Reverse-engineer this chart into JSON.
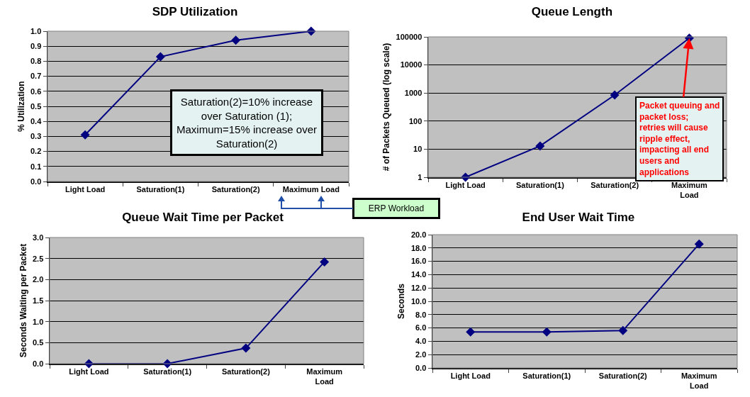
{
  "chart_data": [
    {
      "type": "line",
      "title": "SDP Utilization",
      "ylabel": "% Utilization",
      "categories": [
        "Light Load",
        "Saturation(1)",
        "Saturation(2)",
        "Maximum Load"
      ],
      "color": "#000080",
      "marker": "diamond",
      "grid": "y",
      "values": [
        0.31,
        0.83,
        0.94,
        1.0
      ],
      "ylim": [
        0,
        1
      ],
      "yticks": [
        {
          "value": 0,
          "label": "0.0"
        },
        0.1,
        0.2,
        0.3,
        0.4,
        0.5,
        0.6,
        0.7,
        0.8,
        0.9,
        {
          "value": 1,
          "label": "1.0"
        }
      ],
      "annotations": [
        "Saturation(2)=10% increase over Saturation (1); Maximum=15% increase over Saturation(2)",
        "ERP Workload"
      ]
    },
    {
      "type": "line",
      "title": "Queue Length",
      "ylabel": "# of Packets Queued (log scale)",
      "categories": [
        "Light Load",
        "Saturation(1)",
        "Saturation(2)",
        "Maximum Load"
      ],
      "color": "#000080",
      "marker": "diamond",
      "grid": "y",
      "log": "y",
      "values": [
        1,
        13,
        850,
        90000
      ],
      "ylim": [
        1,
        100000
      ],
      "yticks": [
        1,
        10,
        100,
        1000,
        10000,
        100000
      ],
      "annotations": [
        {
          "text": "Packet queuing and packet loss; retries will cause ripple effect, impacting all end users and applications",
          "x": "Maximum Load",
          "y": 90000
        }
      ]
    },
    {
      "type": "line",
      "title": "Queue Wait Time per Packet",
      "ylabel": "Seconds Waiting per Packet",
      "categories": [
        "Light Load",
        "Saturation(1)",
        "Saturation(2)",
        "Maximum Load"
      ],
      "color": "#000080",
      "marker": "diamond",
      "grid": "y",
      "values": [
        0,
        0,
        0.37,
        2.42
      ],
      "ylim": [
        0,
        3
      ],
      "yticks": [
        {
          "value": 0,
          "label": "0.0"
        },
        0.5,
        {
          "value": 1,
          "label": "1.0"
        },
        1.5,
        {
          "value": 2,
          "label": "2.0"
        },
        2.5,
        {
          "value": 3,
          "label": "3.0"
        }
      ]
    },
    {
      "type": "line",
      "title": "End User Wait Time",
      "ylabel": "Seconds",
      "categories": [
        "Light Load",
        "Saturation(1)",
        "Saturation(2)",
        "Maximum Load"
      ],
      "color": "#000080",
      "marker": "diamond",
      "grid": "y",
      "values": [
        5.4,
        5.4,
        5.6,
        18.6
      ],
      "ylim": [
        0,
        20
      ],
      "yticks": [
        {
          "value": 0,
          "label": "0.0"
        },
        {
          "value": 2,
          "label": "2.0"
        },
        {
          "value": 4,
          "label": "4.0"
        },
        {
          "value": 6,
          "label": "6.0"
        },
        {
          "value": 8,
          "label": "8.0"
        },
        {
          "value": 10,
          "label": "10.0"
        },
        {
          "value": 12,
          "label": "12.0"
        },
        {
          "value": 14,
          "label": "14.0"
        },
        {
          "value": 16,
          "label": "16.0"
        },
        {
          "value": 18,
          "label": "18.0"
        },
        {
          "value": 20,
          "label": "20.0"
        }
      ]
    }
  ]
}
